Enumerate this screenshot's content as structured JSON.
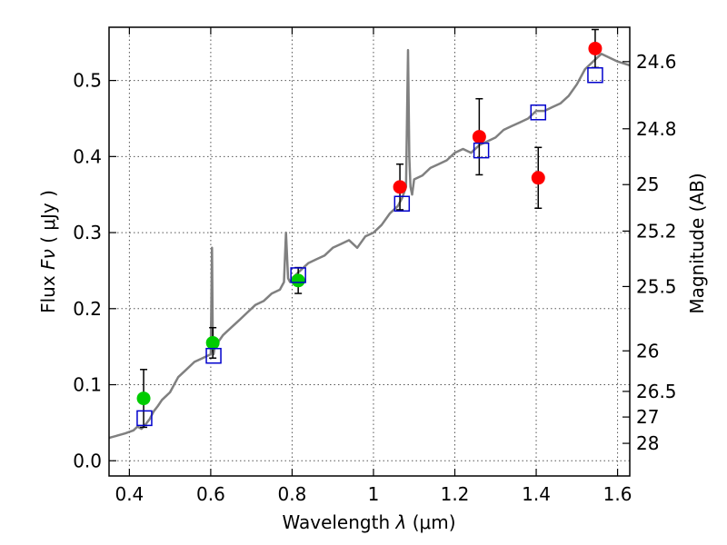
{
  "chart_data": {
    "type": "scatter",
    "xlabel": "Wavelength",
    "xlabel_symbol": "λ",
    "xlabel_unit": "(μm)",
    "ylabel": "Flux",
    "ylabel_symbol": "Fν",
    "ylabel_unit": "( μJy )",
    "y2label": "Magnitude (AB)",
    "xlim": [
      0.35,
      1.63
    ],
    "ylim": [
      -0.02,
      0.57
    ],
    "grid": true,
    "xticks": [
      0.4,
      0.6,
      0.8,
      1.0,
      1.2,
      1.4,
      1.6
    ],
    "xtick_labels": [
      "0.4",
      "0.6",
      "0.8",
      "1",
      "1.2",
      "1.4",
      "1.6"
    ],
    "yticks": [
      0.0,
      0.1,
      0.2,
      0.3,
      0.4,
      0.5
    ],
    "ytick_labels": [
      "0.0",
      "0.1",
      "0.2",
      "0.3",
      "0.4",
      "0.5"
    ],
    "magnitude_ticks": [
      {
        "label": "24.6",
        "flux": 0.5248
      },
      {
        "label": "24.8",
        "flux": 0.4365
      },
      {
        "label": "25",
        "flux": 0.3631
      },
      {
        "label": "25.2",
        "flux": 0.302
      },
      {
        "label": "25.5",
        "flux": 0.2291
      },
      {
        "label": "26",
        "flux": 0.1445
      },
      {
        "label": "26.5",
        "flux": 0.0912
      },
      {
        "label": "27",
        "flux": 0.0575
      },
      {
        "label": "28",
        "flux": 0.0229
      }
    ],
    "series": [
      {
        "name": "model spectrum",
        "kind": "line",
        "color": "#808080",
        "x": [
          0.35,
          0.37,
          0.39,
          0.41,
          0.42,
          0.43,
          0.44,
          0.45,
          0.46,
          0.47,
          0.48,
          0.49,
          0.5,
          0.51,
          0.52,
          0.54,
          0.56,
          0.58,
          0.6,
          0.603,
          0.605,
          0.607,
          0.61,
          0.63,
          0.65,
          0.67,
          0.69,
          0.71,
          0.73,
          0.75,
          0.77,
          0.78,
          0.785,
          0.79,
          0.795,
          0.8,
          0.82,
          0.84,
          0.86,
          0.88,
          0.9,
          0.92,
          0.94,
          0.96,
          0.98,
          1.0,
          1.02,
          1.04,
          1.06,
          1.07,
          1.08,
          1.085,
          1.088,
          1.091,
          1.095,
          1.1,
          1.12,
          1.14,
          1.16,
          1.18,
          1.2,
          1.22,
          1.24,
          1.26,
          1.28,
          1.3,
          1.32,
          1.34,
          1.36,
          1.38,
          1.4,
          1.42,
          1.44,
          1.46,
          1.48,
          1.5,
          1.52,
          1.54,
          1.56,
          1.58,
          1.6,
          1.63
        ],
        "y": [
          0.03,
          0.033,
          0.036,
          0.04,
          0.045,
          0.042,
          0.048,
          0.055,
          0.065,
          0.072,
          0.08,
          0.085,
          0.09,
          0.1,
          0.11,
          0.12,
          0.13,
          0.135,
          0.14,
          0.28,
          0.145,
          0.14,
          0.15,
          0.165,
          0.175,
          0.185,
          0.195,
          0.205,
          0.21,
          0.22,
          0.225,
          0.235,
          0.3,
          0.24,
          0.235,
          0.24,
          0.25,
          0.26,
          0.265,
          0.27,
          0.28,
          0.285,
          0.29,
          0.28,
          0.295,
          0.3,
          0.31,
          0.325,
          0.335,
          0.345,
          0.36,
          0.54,
          0.4,
          0.36,
          0.35,
          0.37,
          0.375,
          0.385,
          0.39,
          0.395,
          0.405,
          0.41,
          0.405,
          0.415,
          0.42,
          0.425,
          0.435,
          0.44,
          0.445,
          0.45,
          0.46,
          0.46,
          0.465,
          0.47,
          0.48,
          0.495,
          0.515,
          0.525,
          0.535,
          0.53,
          0.525,
          0.52
        ]
      },
      {
        "name": "photometry (green)",
        "kind": "points",
        "color": "#00cc00",
        "points": [
          {
            "x": 0.435,
            "y": 0.082,
            "yerr": [
              0.038,
              0.038
            ]
          },
          {
            "x": 0.605,
            "y": 0.155,
            "yerr": [
              0.02,
              0.02
            ]
          },
          {
            "x": 0.815,
            "y": 0.237,
            "yerr": [
              0.017,
              0.017
            ]
          }
        ]
      },
      {
        "name": "photometry (red)",
        "kind": "points",
        "color": "#ff0000",
        "points": [
          {
            "x": 1.065,
            "y": 0.36,
            "yerr": [
              0.03,
              0.03
            ]
          },
          {
            "x": 1.26,
            "y": 0.426,
            "yerr": [
              0.05,
              0.05
            ]
          },
          {
            "x": 1.405,
            "y": 0.372,
            "yerr": [
              0.04,
              0.04
            ]
          },
          {
            "x": 1.545,
            "y": 0.542,
            "yerr": [
              0.025,
              0.025
            ]
          }
        ]
      },
      {
        "name": "model photometry",
        "kind": "squares",
        "color": "#0000cc",
        "points": [
          {
            "x": 0.437,
            "y": 0.056
          },
          {
            "x": 0.607,
            "y": 0.138
          },
          {
            "x": 0.815,
            "y": 0.244
          },
          {
            "x": 1.07,
            "y": 0.338
          },
          {
            "x": 1.265,
            "y": 0.408
          },
          {
            "x": 1.405,
            "y": 0.458
          },
          {
            "x": 1.545,
            "y": 0.507
          }
        ]
      }
    ]
  }
}
